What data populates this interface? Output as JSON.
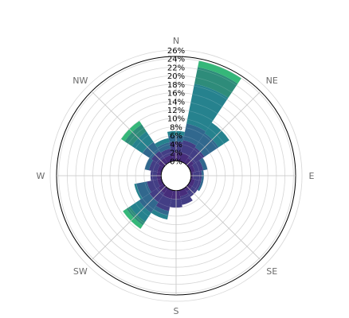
{
  "chart_data": {
    "type": "windrose",
    "title": "",
    "directions": [
      "N",
      "NE",
      "E",
      "SE",
      "S",
      "SW",
      "W",
      "NW"
    ],
    "sector_angles_deg": [
      0,
      22.5,
      45,
      67.5,
      90,
      112.5,
      135,
      157.5,
      180,
      202.5,
      225,
      247.5,
      270,
      292.5,
      315,
      337.5
    ],
    "radial_ticks": [
      "0%",
      "2%",
      "4%",
      "6%",
      "8%",
      "10%",
      "12%",
      "14%",
      "16%",
      "18%",
      "20%",
      "22%",
      "24%",
      "26%"
    ],
    "rlim": [
      0,
      28
    ],
    "inner_hole": 3.5,
    "grid": true,
    "series": [
      {
        "color": "#472d7b",
        "values": [
          2.0,
          2.0,
          1.5,
          1.0,
          0.5,
          1.0,
          1.0,
          1.5,
          2.0,
          2.0,
          1.5,
          1.0,
          1.0,
          1.0,
          1.5,
          1.5
        ]
      },
      {
        "color": "#433e85",
        "values": [
          2.5,
          3.0,
          3.0,
          2.0,
          2.0,
          1.5,
          1.5,
          2.0,
          2.0,
          3.0,
          2.5,
          2.5,
          1.5,
          2.0,
          2.0,
          1.5
        ]
      },
      {
        "color": "#31688e",
        "values": [
          1.5,
          4.0,
          4.0,
          1.0,
          0.5,
          0.5,
          0.0,
          0.0,
          0.0,
          1.0,
          3.0,
          2.5,
          0.0,
          1.0,
          2.5,
          1.5
        ]
      },
      {
        "color": "#26828e",
        "values": [
          1.0,
          9.5,
          3.0,
          0.0,
          0.0,
          0.0,
          0.0,
          0.0,
          0.0,
          1.0,
          2.5,
          0.5,
          0.0,
          0.0,
          3.0,
          1.0
        ]
      },
      {
        "color": "#2e8c7a",
        "values": [
          0.0,
          4.0,
          0.0,
          0.0,
          0.0,
          0.0,
          0.0,
          0.0,
          0.0,
          0.0,
          1.0,
          0.0,
          0.0,
          0.0,
          2.0,
          0.0
        ]
      },
      {
        "color": "#35b779",
        "values": [
          0.0,
          1.5,
          0.0,
          0.0,
          0.0,
          0.0,
          0.0,
          0.0,
          0.0,
          0.0,
          1.0,
          0.0,
          0.0,
          0.0,
          1.0,
          0.0
        ]
      }
    ]
  }
}
